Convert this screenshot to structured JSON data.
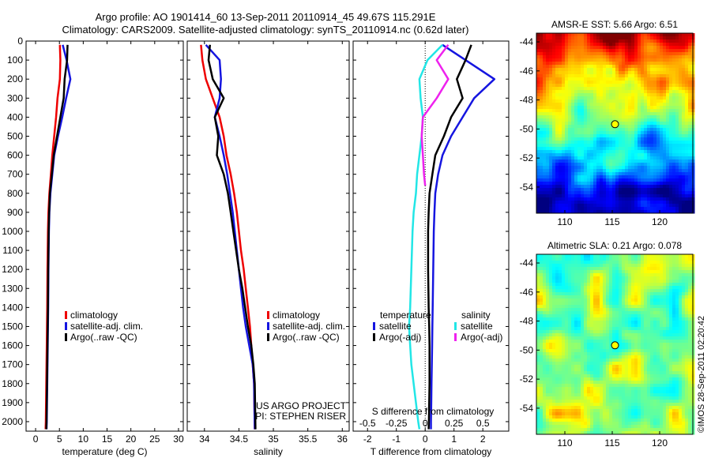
{
  "figure": {
    "title_line1": "Argo profile: AO 1901414_60 13-Sep-2011 20110914_45 49.67S 115.291E",
    "title_line2": "Climatology: CARS2009. Satellite-adjusted climatology: synTS_20110914.nc (0.62d later)",
    "credit": "©IMOS 28-Sep-2011 02:20:42",
    "project_line1": "US ARGO PROJECT",
    "project_line2": "PI: STEPHEN RISER"
  },
  "colors": {
    "climatology": "#ee0000",
    "satellite": "#1515e0",
    "argo": "#000000",
    "sal_satellite": "#22e6e6",
    "sal_argo": "#ee22ee",
    "float_marker": "#ffff00"
  },
  "chart_data": [
    {
      "type": "line",
      "panel": "temperature",
      "xlabel": "temperature (deg C)",
      "xlim": [
        -2,
        31
      ],
      "xticks": [
        0,
        5,
        10,
        15,
        20,
        25,
        30
      ],
      "ylim": [
        0,
        2050
      ],
      "yticks": [
        0,
        100,
        200,
        300,
        400,
        500,
        600,
        700,
        800,
        900,
        1000,
        1100,
        1200,
        1300,
        1400,
        1500,
        1600,
        1700,
        1800,
        1900,
        2000
      ],
      "legend": [
        "climatology",
        "satellite-adj. clim.",
        "Argo(..raw -QC)"
      ],
      "series": [
        {
          "name": "climatology",
          "color_key": "climatology",
          "x": [
            5.1,
            5.2,
            5.1,
            4.6,
            4.3,
            3.9,
            3.5,
            3.2,
            2.9,
            2.7,
            2.6,
            2.5,
            2.45,
            2.4,
            2.35,
            2.3,
            2.25,
            2.2,
            2.15,
            2.1
          ],
          "y": [
            20,
            100,
            200,
            300,
            400,
            500,
            600,
            700,
            800,
            900,
            1000,
            1200,
            1400,
            1500,
            1600,
            1700,
            1800,
            1900,
            2000,
            2040
          ]
        },
        {
          "name": "satellite-adj. clim.",
          "color_key": "satellite",
          "x": [
            5.7,
            6.5,
            7.3,
            6.4,
            5.6,
            4.7,
            3.9,
            3.5,
            3.1,
            2.9,
            2.8,
            2.7,
            2.65,
            2.6,
            2.55,
            2.5,
            2.45,
            2.4,
            2.35,
            2.3
          ],
          "y": [
            20,
            100,
            200,
            300,
            400,
            500,
            600,
            700,
            800,
            900,
            1000,
            1200,
            1400,
            1500,
            1600,
            1700,
            1800,
            1900,
            2000,
            2040
          ]
        },
        {
          "name": "Argo(..raw -QC)",
          "color_key": "argo",
          "x": [
            6.7,
            6.6,
            6.1,
            5.9,
            5.2,
            4.5,
            3.8,
            3.4,
            3.0,
            2.85,
            2.75,
            2.65,
            2.6,
            2.55,
            2.5,
            2.45,
            2.4,
            2.35,
            2.3,
            2.25
          ],
          "y": [
            20,
            100,
            200,
            300,
            400,
            500,
            600,
            700,
            800,
            900,
            1000,
            1200,
            1400,
            1500,
            1600,
            1700,
            1800,
            1900,
            2000,
            2040
          ]
        }
      ]
    },
    {
      "type": "line",
      "panel": "salinity",
      "xlabel": "salinity",
      "xlim": [
        33.75,
        36.1
      ],
      "xticks": [
        34,
        34.5,
        35,
        35.5,
        36
      ],
      "xticklabels": [
        "34",
        "34.5",
        "35",
        "35.5",
        "36"
      ],
      "ylim": [
        0,
        2050
      ],
      "legend": [
        "climatology",
        "satellite-adj. clim.",
        "Argo(..raw -QC)"
      ],
      "series": [
        {
          "name": "climatology",
          "color_key": "climatology",
          "x": [
            33.95,
            33.97,
            34.02,
            34.12,
            34.22,
            34.28,
            34.32,
            34.38,
            34.43,
            34.47,
            34.5,
            34.53,
            34.57,
            34.6,
            34.63,
            34.66,
            34.68,
            34.7,
            34.72,
            34.73
          ],
          "y": [
            20,
            100,
            200,
            300,
            400,
            500,
            600,
            700,
            800,
            900,
            1000,
            1100,
            1200,
            1300,
            1400,
            1500,
            1600,
            1700,
            1800,
            2040
          ]
        },
        {
          "name": "satellite-adj. clim.",
          "color_key": "satellite",
          "x": [
            34.02,
            34.22,
            34.24,
            34.22,
            34.15,
            34.22,
            34.28,
            34.33,
            34.37,
            34.41,
            34.44,
            34.47,
            34.5,
            34.53,
            34.56,
            34.6,
            34.65,
            34.7,
            34.72,
            34.73
          ],
          "y": [
            20,
            100,
            200,
            300,
            400,
            500,
            600,
            700,
            800,
            900,
            1000,
            1100,
            1200,
            1300,
            1400,
            1500,
            1600,
            1700,
            1800,
            2040
          ]
        },
        {
          "name": "Argo(..raw -QC)",
          "color_key": "argo",
          "x": [
            34.08,
            34.06,
            34.12,
            34.28,
            34.15,
            34.2,
            34.18,
            34.28,
            34.34,
            34.38,
            34.42,
            34.46,
            34.5,
            34.55,
            34.59,
            34.63,
            34.68,
            34.71,
            34.73,
            34.74
          ],
          "y": [
            20,
            100,
            200,
            300,
            400,
            500,
            600,
            700,
            800,
            900,
            1000,
            1100,
            1200,
            1300,
            1400,
            1500,
            1600,
            1700,
            1800,
            2040
          ]
        }
      ]
    },
    {
      "type": "line",
      "panel": "difference",
      "xlabel": "T difference from climatology",
      "xlim": [
        -2.5,
        2.9
      ],
      "xticks": [
        -2,
        -1,
        0,
        1,
        2
      ],
      "top_axis_label": "S difference from climatology",
      "top_xlim": [
        -0.625,
        0.725
      ],
      "top_xticks": [
        -0.5,
        -0.25,
        0,
        0.25,
        0.5
      ],
      "top_xticklabels": [
        "-0.5",
        "-0.25",
        "0",
        "0.25",
        "0.5"
      ],
      "ylim": [
        0,
        2050
      ],
      "legend_temperature_title": "temperature",
      "legend_salinity_title": "salinity",
      "legend_temperature": [
        "satellite",
        "Argo(-adj)"
      ],
      "legend_salinity": [
        "satellite",
        "Argo(-adj)"
      ],
      "series": [
        {
          "name": "satellite",
          "group": "temperature",
          "color_key": "satellite",
          "x": [
            0.6,
            1.4,
            2.4,
            1.7,
            1.3,
            0.9,
            0.6,
            0.45,
            0.35,
            0.32,
            0.3,
            0.28,
            0.26,
            0.25,
            0.24,
            0.23,
            0.22,
            0.21,
            0.2,
            0.2
          ],
          "y": [
            20,
            100,
            200,
            300,
            400,
            500,
            600,
            700,
            800,
            900,
            1000,
            1200,
            1400,
            1500,
            1600,
            1700,
            1800,
            1900,
            2000,
            2040
          ]
        },
        {
          "name": "Argo(-adj)",
          "group": "temperature",
          "color_key": "argo",
          "x": [
            1.6,
            1.4,
            1.1,
            1.3,
            0.9,
            0.65,
            0.35,
            0.25,
            0.15,
            0.12,
            0.1,
            0.1,
            0.12,
            0.14,
            0.15,
            0.15,
            0.15,
            0.14,
            0.13,
            0.12
          ],
          "y": [
            20,
            100,
            200,
            300,
            400,
            500,
            600,
            700,
            800,
            900,
            1000,
            1200,
            1400,
            1500,
            1600,
            1700,
            1800,
            1900,
            2000,
            2040
          ]
        },
        {
          "name": "satellite",
          "group": "salinity",
          "color_key": "sal_satellite",
          "x": [
            0.15,
            0.02,
            -0.05,
            -0.04,
            -0.02,
            -0.03,
            -0.05,
            -0.07,
            -0.08,
            -0.1,
            -0.11,
            -0.12,
            -0.13,
            -0.14,
            -0.13,
            -0.12,
            -0.1,
            -0.08,
            -0.06,
            -0.05
          ],
          "y": [
            20,
            100,
            200,
            300,
            400,
            500,
            600,
            700,
            800,
            900,
            1000,
            1200,
            1400,
            1500,
            1600,
            1700,
            1800,
            1900,
            2000,
            2040
          ]
        },
        {
          "name": "Argo(-adj)",
          "group": "salinity",
          "color_key": "sal_argo",
          "x": [
            0.2,
            0.1,
            0.2,
            0.1,
            -0.02,
            -0.03,
            -0.02,
            -0.01,
            0.0
          ],
          "y": [
            20,
            100,
            200,
            300,
            400,
            500,
            600,
            700,
            760
          ]
        }
      ]
    },
    {
      "type": "heatmap",
      "panel": "sst_map",
      "title": "AMSR-E SST: 5.66  Argo: 6.51",
      "xlim": [
        107,
        123.5
      ],
      "ylim": [
        -55.8,
        -43.4
      ],
      "xticks": [
        110,
        115,
        120
      ],
      "yticks": [
        -44,
        -46,
        -48,
        -50,
        -52,
        -54
      ],
      "marker": {
        "lon": 115.291,
        "lat": -49.67
      }
    },
    {
      "type": "heatmap",
      "panel": "sla_map",
      "title": "Altimetric SLA: 0.21  Argo: 0.078",
      "xlim": [
        107,
        123.5
      ],
      "ylim": [
        -55.8,
        -43.4
      ],
      "xticks": [
        110,
        115,
        120
      ],
      "yticks": [
        -44,
        -46,
        -48,
        -50,
        -52,
        -54
      ],
      "marker": {
        "lon": 115.291,
        "lat": -49.67
      }
    }
  ]
}
